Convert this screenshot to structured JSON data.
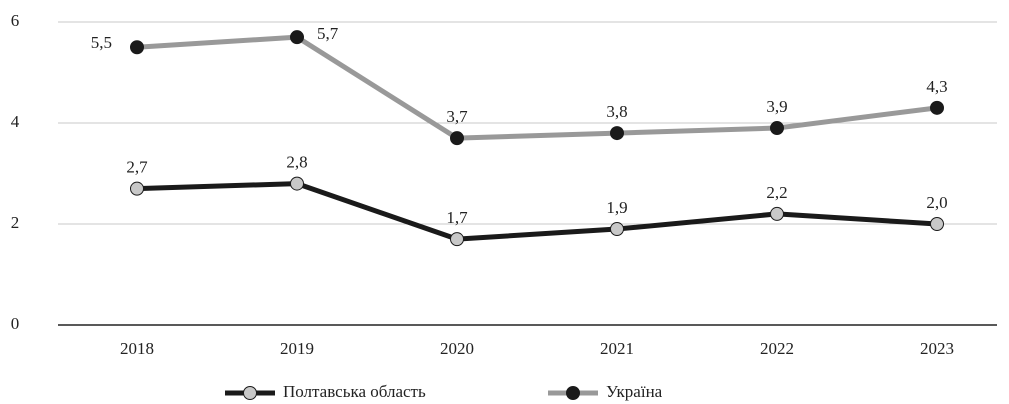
{
  "chart_data": {
    "type": "line",
    "categories": [
      "2018",
      "2019",
      "2020",
      "2021",
      "2022",
      "2023"
    ],
    "series": [
      {
        "name": "Полтавська область",
        "color": "#1a1a1a",
        "marker_color": "#c8c8c8",
        "values": [
          2.7,
          2.8,
          1.7,
          1.9,
          2.2,
          2.0
        ],
        "value_labels": [
          "2,7",
          "2,8",
          "1,7",
          "1,9",
          "2,2",
          "2,0"
        ]
      },
      {
        "name": "Україна",
        "color": "#999999",
        "marker_color": "#1a1a1a",
        "values": [
          5.5,
          5.7,
          3.7,
          3.8,
          3.9,
          4.3
        ],
        "value_labels": [
          "5,5",
          "5,7",
          "3,7",
          "3,8",
          "3,9",
          "4,3"
        ]
      }
    ],
    "ylim": [
      0,
      6
    ],
    "yticks": [
      0,
      2,
      4,
      6
    ],
    "grid": true
  }
}
